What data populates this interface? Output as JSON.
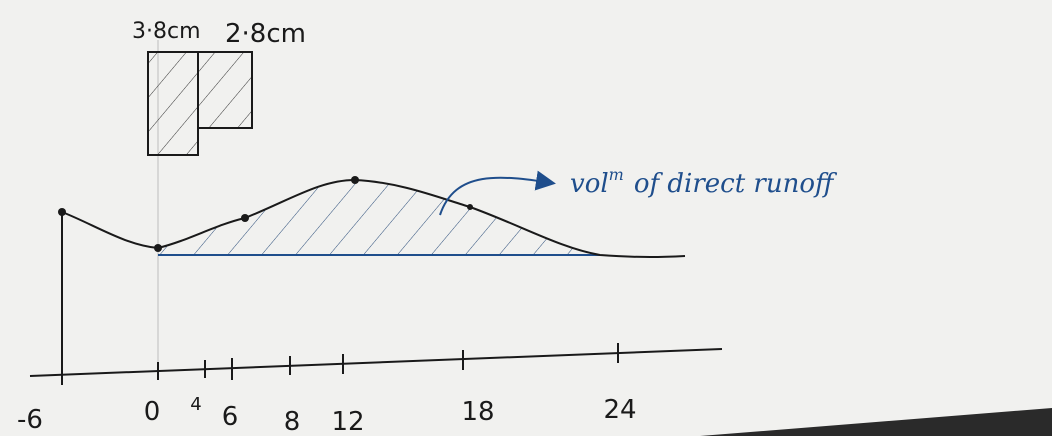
{
  "rainfall_labels": [
    "3·8cm",
    "2·8cm"
  ],
  "annotation": {
    "text": "vol",
    "superscript": "m",
    "rest": "of direct runoff"
  },
  "axis_labels": [
    "-6",
    "0",
    "4",
    "6",
    "8",
    "12",
    "18",
    "24"
  ]
}
